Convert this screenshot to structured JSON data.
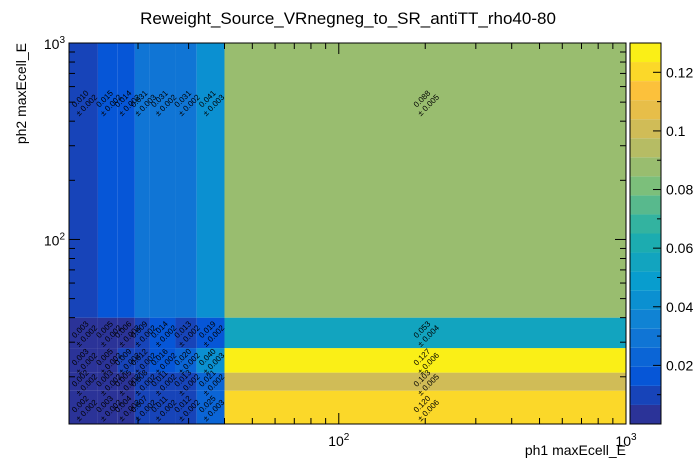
{
  "chart_data": {
    "type": "heatmap",
    "title": "Reweight_Source_VRnegneg_to_SR_antiTT_rho40-80",
    "xlabel": "ph1 maxEcell_E",
    "ylabel": "ph2 maxEcell_E",
    "x_scale": "log",
    "y_scale": "log",
    "xlim": [
      11.5,
      1000
    ],
    "ylim": [
      11.5,
      1000
    ],
    "x_edges": [
      11.5,
      14.5,
      17,
      19.5,
      22,
      27,
      32,
      40,
      1000
    ],
    "y_edges": [
      11.5,
      17,
      21,
      28,
      40,
      1000
    ],
    "x_ticks": [
      {
        "base": "10",
        "exp": "2",
        "value": 100
      },
      {
        "base": "10",
        "exp": "3",
        "value": 1000
      }
    ],
    "y_ticks": [
      {
        "base": "10",
        "exp": "2",
        "value": 100
      },
      {
        "base": "10",
        "exp": "3",
        "value": 1000
      }
    ],
    "z_range": [
      0,
      0.13
    ],
    "colorbar_ticks": [
      "0.02",
      "0.04",
      "0.06",
      "0.08",
      "0.1",
      "0.12"
    ],
    "rows_bottom_to_top": [
      {
        "values": [
          0.002,
          0.003,
          0.004,
          0.007,
          0.011,
          0.012,
          0.025,
          0.12
        ],
        "labels": [
          [
            "0.002",
            "± 0.002"
          ],
          [
            "0.003",
            "± 0.002"
          ],
          [
            "0.004",
            "± 0.002"
          ],
          [
            "0.007",
            "± 0.002"
          ],
          [
            "0.011",
            "± 0.002"
          ],
          [
            "0.012",
            "± 0.002"
          ],
          [
            "0.025",
            "± 0.003"
          ],
          [
            "0.120",
            "± 0.006"
          ]
        ]
      },
      {
        "values": [
          0.002,
          0.003,
          0.005,
          0.008,
          0.011,
          0.013,
          0.021,
          0.103
        ],
        "labels": [
          [
            "0.002",
            "± 0.002"
          ],
          [
            "0.003",
            "± 0.002"
          ],
          [
            "0.005",
            "± 0.002"
          ],
          [
            "0.008",
            "± 0.002"
          ],
          [
            "0.011",
            "± 0.002"
          ],
          [
            "0.013",
            "± 0.002"
          ],
          [
            "0.021",
            "± 0.002"
          ],
          [
            "0.103",
            "± 0.005"
          ]
        ]
      },
      {
        "values": [
          0.003,
          0.005,
          0.009,
          0.012,
          0.016,
          0.02,
          0.04,
          0.127
        ],
        "labels": [
          [
            "0.003",
            "± 0.002"
          ],
          [
            "0.005",
            "± 0.002"
          ],
          [
            "0.009",
            "± 0.002"
          ],
          [
            "0.012",
            "± 0.002"
          ],
          [
            "0.016",
            "± 0.002"
          ],
          [
            "0.020",
            "± 0.002"
          ],
          [
            "0.040",
            "± 0.003"
          ],
          [
            "0.127",
            "± 0.006"
          ]
        ]
      },
      {
        "values": [
          0.003,
          0.005,
          0.006,
          0.009,
          0.014,
          0.013,
          0.019,
          0.053
        ],
        "labels": [
          [
            "0.003",
            "± 0.002"
          ],
          [
            "0.005",
            "± 0.002"
          ],
          [
            "0.006",
            "± 0.002"
          ],
          [
            "0.009",
            "± 0.002"
          ],
          [
            "0.014",
            "± 0.002"
          ],
          [
            "0.013",
            "± 0.002"
          ],
          [
            "0.019",
            "± 0.002"
          ],
          [
            "0.053",
            "± 0.004"
          ]
        ]
      },
      {
        "values": [
          0.01,
          0.015,
          0.014,
          0.031,
          0.031,
          0.031,
          0.041,
          0.088
        ],
        "labels": [
          [
            "0.010",
            "± 0.002"
          ],
          [
            "0.015",
            "± 0.002"
          ],
          [
            "0.014",
            "± 0.002"
          ],
          [
            "0.031",
            "± 0.003"
          ],
          [
            "0.031",
            "± 0.002"
          ],
          [
            "0.031",
            "± 0.002"
          ],
          [
            "0.041",
            "± 0.003"
          ],
          [
            "0.088",
            "± 0.005"
          ]
        ]
      }
    ],
    "colormap": "parula",
    "grid": false,
    "legend": "none"
  }
}
